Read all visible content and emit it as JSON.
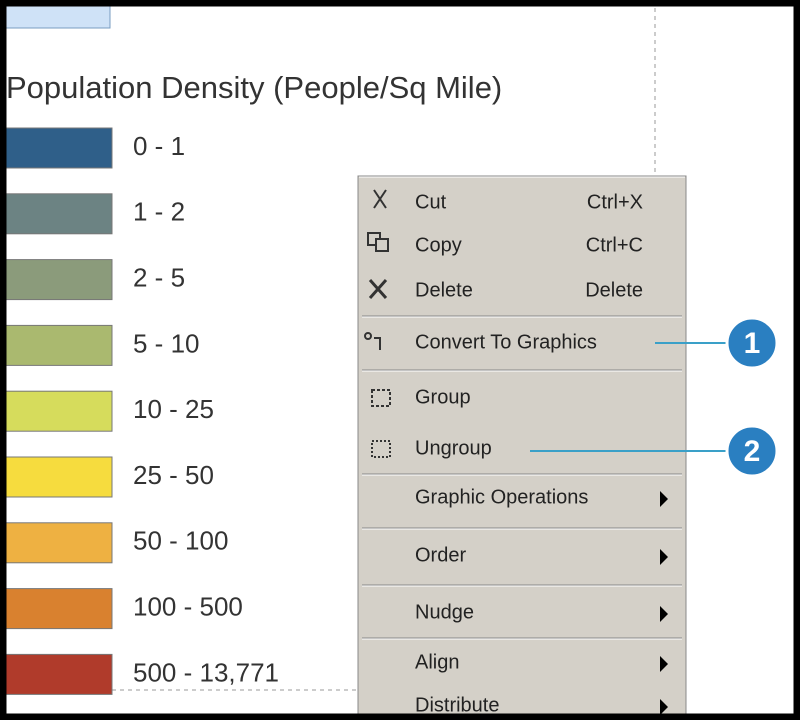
{
  "legend": {
    "title": "Population Density (People/Sq Mile)",
    "items": [
      {
        "label": "0 - 1",
        "color": "#2f5f89"
      },
      {
        "label": "1 - 2",
        "color": "#6c8383"
      },
      {
        "label": "2 - 5",
        "color": "#8b9b7b"
      },
      {
        "label": "5 - 10",
        "color": "#aab96f"
      },
      {
        "label": "10 - 25",
        "color": "#d6dc5c"
      },
      {
        "label": "25 - 50",
        "color": "#f6dc3e"
      },
      {
        "label": "50 - 100",
        "color": "#eeb142"
      },
      {
        "label": "100 - 500",
        "color": "#d9812f"
      },
      {
        "label": "500 - 13,771",
        "color": "#b03b2b"
      }
    ]
  },
  "menu": {
    "items": [
      {
        "label": "Cut",
        "shortcut": "Ctrl+X"
      },
      {
        "label": "Copy",
        "shortcut": "Ctrl+C"
      },
      {
        "label": "Delete",
        "shortcut": "Delete"
      },
      {
        "label": "Convert To Graphics"
      },
      {
        "label": "Group"
      },
      {
        "label": "Ungroup"
      },
      {
        "label": "Graphic Operations",
        "submenu": true
      },
      {
        "label": "Order",
        "submenu": true
      },
      {
        "label": "Nudge",
        "submenu": true
      },
      {
        "label": "Align",
        "submenu": true
      },
      {
        "label": "Distribute",
        "submenu": true
      }
    ]
  },
  "callouts": [
    "1",
    "2"
  ]
}
